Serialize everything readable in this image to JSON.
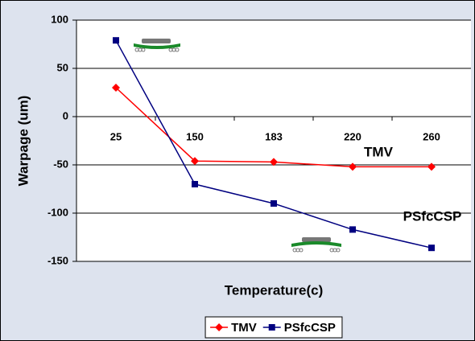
{
  "chart_data": {
    "type": "line",
    "categories": [
      "25",
      "150",
      "183",
      "220",
      "260"
    ],
    "series": [
      {
        "name": "TMV",
        "color": "#ff0000",
        "marker": "diamond",
        "values": [
          30,
          -46,
          -47,
          -52,
          -52
        ]
      },
      {
        "name": "PSfcCSP",
        "color": "#000080",
        "marker": "square",
        "values": [
          79,
          -70,
          -90,
          -117,
          -136
        ]
      }
    ],
    "x_label": "Temperature(c)",
    "y_label": "Warpage (um)",
    "ylim": [
      -150,
      100
    ],
    "yticks": [
      -150,
      -100,
      -50,
      0,
      50,
      100
    ],
    "grid": true,
    "legend": "bottom",
    "annotations": [
      {
        "text": "TMV"
      },
      {
        "text": "PSfcCSP"
      }
    ]
  }
}
